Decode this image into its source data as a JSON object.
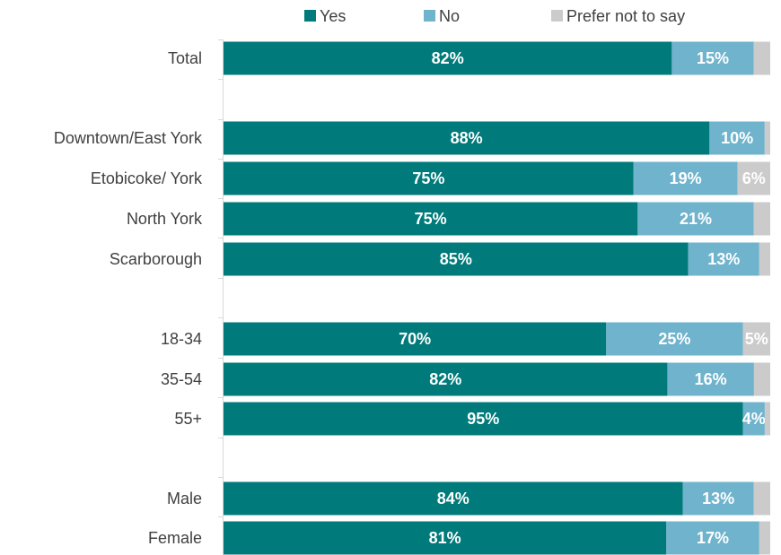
{
  "chart_data": {
    "type": "bar",
    "orientation": "horizontal",
    "stacked": true,
    "normalized_to_percent": true,
    "title": "",
    "xlabel": "",
    "ylabel": "",
    "grid": false,
    "legend_position": "top",
    "categories": [
      "Total",
      "Downtown/East York",
      "Etobicoke/ York",
      "North York",
      "Scarborough",
      "18-34",
      "35-54",
      "55+",
      "Male",
      "Female"
    ],
    "groups": [
      [
        "Total"
      ],
      [
        "Downtown/East York",
        "Etobicoke/ York",
        "North York",
        "Scarborough"
      ],
      [
        "18-34",
        "35-54",
        "55+"
      ],
      [
        "Male",
        "Female"
      ]
    ],
    "series": [
      {
        "name": "Yes",
        "color": "#007a7a",
        "values": [
          82,
          88,
          75,
          75,
          85,
          70,
          82,
          95,
          84,
          81
        ],
        "labels": [
          "82%",
          "88%",
          "75%",
          "75%",
          "85%",
          "70%",
          "82%",
          "95%",
          "84%",
          "81%"
        ]
      },
      {
        "name": "No",
        "color": "#6fb3cc",
        "values": [
          15,
          10,
          19,
          21,
          13,
          25,
          16,
          4,
          13,
          17
        ],
        "labels": [
          "15%",
          "10%",
          "19%",
          "21%",
          "13%",
          "25%",
          "16%",
          "4%",
          "13%",
          "17%"
        ]
      },
      {
        "name": "Prefer not to say",
        "color": "#cbcbcb",
        "values": [
          3,
          1,
          6,
          3,
          2,
          5,
          3,
          1,
          3,
          2
        ],
        "labels": [
          "",
          "",
          "6%",
          "",
          "",
          "5%",
          "",
          "",
          "",
          ""
        ]
      }
    ]
  }
}
